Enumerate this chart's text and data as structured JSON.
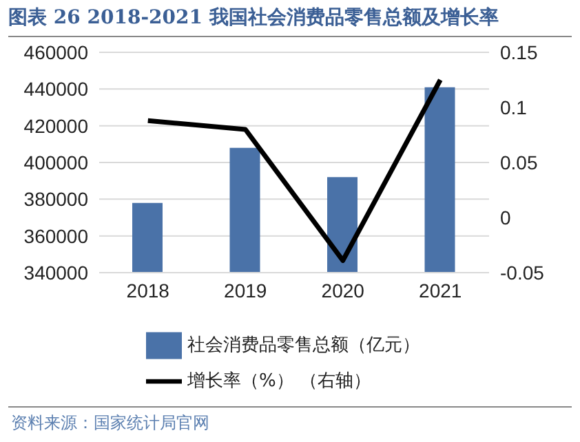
{
  "chart_data": {
    "type": "bar",
    "title": "图表 26 2018-2021 我国社会消费品零售总额及增长率",
    "categories": [
      "2018",
      "2019",
      "2020",
      "2021"
    ],
    "series": [
      {
        "name": "社会消费品零售总额（亿元）",
        "color": "#4a72a8",
        "values": [
          378000,
          408000,
          392000,
          441000
        ]
      },
      {
        "name": "增长率（%）  （右轴）",
        "type": "line",
        "axis": "y2",
        "color": "#000000",
        "values": [
          0.088,
          0.08,
          -0.039,
          0.125
        ]
      }
    ],
    "ylim": [
      340000,
      460000
    ],
    "yticks": [
      340000,
      360000,
      380000,
      400000,
      420000,
      440000,
      460000
    ],
    "y2lim": [
      -0.05,
      0.15
    ],
    "y2ticks": [
      -0.05,
      0,
      0.05,
      0.1,
      0.15
    ],
    "grid": "y",
    "legend": "bottom",
    "marker": "none",
    "annotations": [
      "资料来源：国家统计局官网"
    ]
  }
}
